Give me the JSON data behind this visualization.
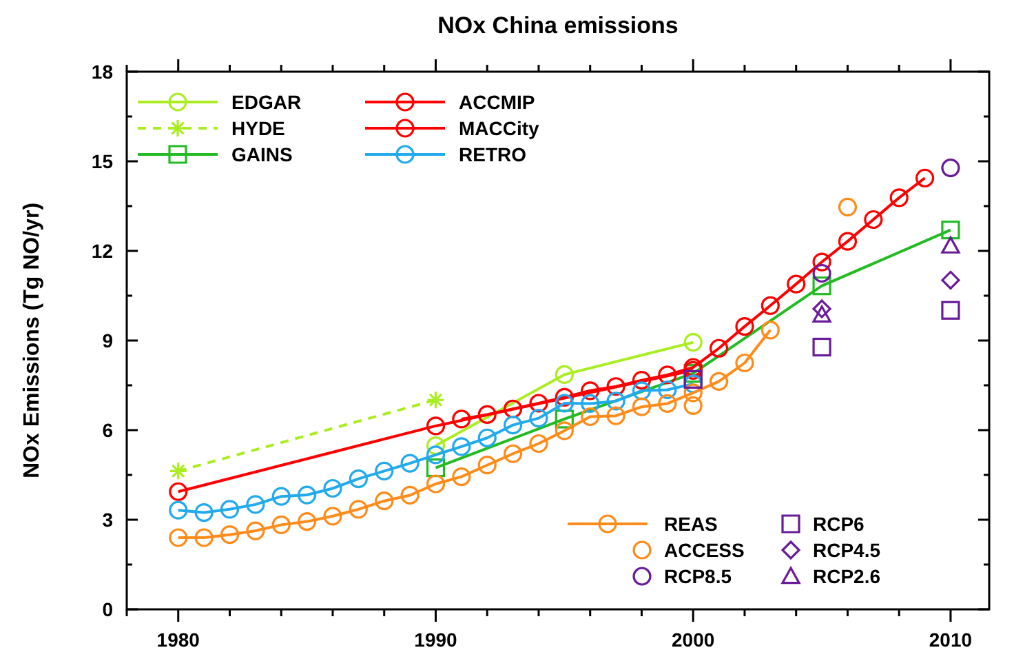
{
  "chart_data": {
    "type": "line",
    "title": "NOx China emissions",
    "ylabel": "NOx Emissions (Tg NO/yr)",
    "xlim": [
      1978,
      2011.5
    ],
    "ylim": [
      0,
      18
    ],
    "xticks": [
      {
        "value": 1978,
        "label": null
      },
      1980,
      {
        "value": 1982,
        "label": null
      },
      {
        "value": 1984,
        "label": null
      },
      {
        "value": 1986,
        "label": null
      },
      {
        "value": 1988,
        "label": null
      },
      1990,
      {
        "value": 1992,
        "label": null
      },
      {
        "value": 1994,
        "label": null
      },
      {
        "value": 1996,
        "label": null
      },
      {
        "value": 1998,
        "label": null
      },
      2000,
      {
        "value": 2002,
        "label": null
      },
      {
        "value": 2004,
        "label": null
      },
      {
        "value": 2006,
        "label": null
      },
      {
        "value": 2008,
        "label": null
      },
      2010
    ],
    "yticks": [
      0,
      {
        "value": 1.5,
        "label": null
      },
      3,
      {
        "value": 4.5,
        "label": null
      },
      6,
      {
        "value": 7.5,
        "label": null
      },
      9,
      {
        "value": 10.5,
        "label": null
      },
      12,
      {
        "value": 13.5,
        "label": null
      },
      15,
      {
        "value": 16.5,
        "label": null
      },
      18
    ],
    "legend": "top left",
    "grid": false,
    "series": [
      {
        "name": "EDGAR",
        "color": "#aaee22",
        "marker": "circle",
        "x": [
          1990,
          1995,
          2000
        ],
        "values": [
          5.48,
          7.86,
          8.94
        ]
      },
      {
        "name": "HYDE",
        "color": "#aaee22",
        "marker": "cross",
        "line_style": "dashed",
        "x": [
          1980,
          1990
        ],
        "values": [
          4.63,
          7.01
        ]
      },
      {
        "name": "GAINS",
        "color": "#22bb22",
        "marker": "square",
        "x": [
          1990,
          1995,
          2000,
          2005,
          2010
        ],
        "values": [
          4.74,
          6.37,
          7.9,
          10.83,
          12.7
        ]
      },
      {
        "name": "ACCMIP",
        "color": "#ff0000",
        "marker": "circle",
        "x": [
          1980,
          1990,
          2000
        ],
        "values": [
          3.94,
          6.14,
          8.0
        ]
      },
      {
        "name": "MACCity",
        "color": "#ff0000",
        "marker": "circle",
        "x": [
          1991,
          1992,
          1993,
          1994,
          1995,
          1996,
          1997,
          1998,
          1999,
          2000,
          2001,
          2002,
          2003,
          2004,
          2005,
          2006,
          2007,
          2008,
          2009
        ],
        "values": [
          6.37,
          6.52,
          6.71,
          6.9,
          7.1,
          7.32,
          7.46,
          7.67,
          7.85,
          8.1,
          8.74,
          9.47,
          10.17,
          10.89,
          11.63,
          12.32,
          13.05,
          13.78,
          14.44
        ]
      },
      {
        "name": "RETRO",
        "color": "#22aaee",
        "marker": "circle",
        "x": [
          1980,
          1981,
          1982,
          1983,
          1984,
          1985,
          1986,
          1987,
          1988,
          1989,
          1990,
          1991,
          1992,
          1993,
          1994,
          1995,
          1996,
          1997,
          1998,
          1999,
          2000
        ],
        "values": [
          3.32,
          3.24,
          3.35,
          3.51,
          3.78,
          3.83,
          4.05,
          4.37,
          4.63,
          4.89,
          5.17,
          5.45,
          5.74,
          6.17,
          6.4,
          6.9,
          6.89,
          6.97,
          7.32,
          7.35,
          7.55
        ]
      },
      {
        "name": "REAS",
        "color": "#ff8c1a",
        "marker": "circle",
        "x": [
          1980,
          1981,
          1982,
          1983,
          1984,
          1985,
          1986,
          1987,
          1988,
          1989,
          1990,
          1991,
          1992,
          1993,
          1994,
          1995,
          1996,
          1997,
          1998,
          1999,
          2000,
          2001,
          2002,
          2003
        ],
        "values": [
          2.4,
          2.4,
          2.5,
          2.63,
          2.83,
          2.94,
          3.12,
          3.35,
          3.63,
          3.82,
          4.2,
          4.44,
          4.83,
          5.21,
          5.55,
          5.98,
          6.45,
          6.48,
          6.78,
          6.89,
          7.25,
          7.63,
          8.25,
          9.35
        ]
      },
      {
        "name": "ACCESS",
        "color": "#ff8c1a",
        "type": "scatter",
        "marker": "circle",
        "x": [
          2000,
          2006
        ],
        "values": [
          6.82,
          13.47
        ]
      },
      {
        "name": "RCP8.5",
        "color": "#6a1b9a",
        "type": "scatter",
        "marker": "circle",
        "x": [
          2005,
          2010
        ],
        "values": [
          11.25,
          14.78
        ]
      },
      {
        "name": "RCP6",
        "color": "#6a1b9a",
        "type": "scatter",
        "marker": "square",
        "x": [
          2000,
          2005,
          2010
        ],
        "values": [
          7.7,
          8.78,
          10.01
        ]
      },
      {
        "name": "RCP4.5",
        "color": "#6a1b9a",
        "type": "scatter",
        "marker": "diamond",
        "x": [
          2005,
          2010
        ],
        "values": [
          10.06,
          11.02
        ]
      },
      {
        "name": "RCP2.6",
        "color": "#6a1b9a",
        "type": "scatter",
        "marker": "triangle",
        "x": [
          2005,
          2010
        ],
        "values": [
          9.86,
          12.17
        ]
      }
    ]
  }
}
